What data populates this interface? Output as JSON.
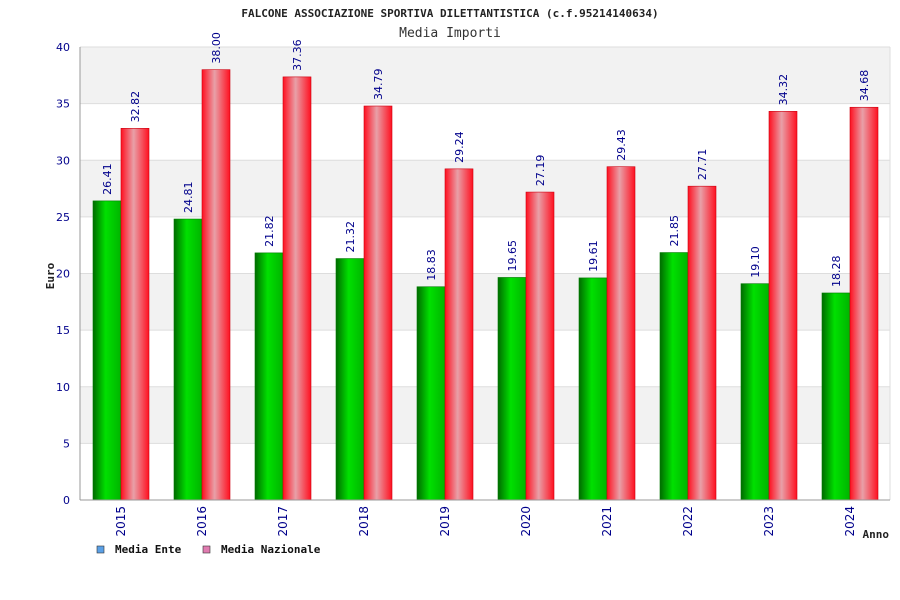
{
  "chart_data": {
    "type": "bar",
    "title": "FALCONE ASSOCIAZIONE SPORTIVA DILETTANTISTICA (c.f.95214140634)",
    "subtitle": "Media Importi",
    "xlabel": "Anno",
    "ylabel": "Euro",
    "ylim": [
      0,
      40
    ],
    "yticks": [
      0,
      5,
      10,
      15,
      20,
      25,
      30,
      35,
      40
    ],
    "grid": true,
    "legend_position": "bottom-left",
    "categories": [
      "2015",
      "2016",
      "2017",
      "2018",
      "2019",
      "2020",
      "2021",
      "2022",
      "2023",
      "2024"
    ],
    "series": [
      {
        "name": "Media Ente",
        "legend_color": "#5aa0e6",
        "bar_color": "#00cc00",
        "values": [
          26.41,
          24.81,
          21.82,
          21.32,
          18.83,
          19.65,
          19.61,
          21.85,
          19.1,
          18.28
        ],
        "labels": [
          "26.41",
          "24.81",
          "21.82",
          "21.32",
          "18.83",
          "19.65",
          "19.61",
          "21.85",
          "19.10",
          "18.28"
        ]
      },
      {
        "name": "Media Nazionale",
        "legend_color": "#e07bb0",
        "bar_color": "#ff1a2a",
        "values": [
          32.82,
          38.0,
          37.36,
          34.79,
          29.24,
          27.19,
          29.43,
          27.71,
          34.32,
          34.68
        ],
        "labels": [
          "32.82",
          "38.00",
          "37.36",
          "34.79",
          "29.24",
          "27.19",
          "29.43",
          "27.71",
          "34.32",
          "34.68"
        ]
      }
    ]
  }
}
